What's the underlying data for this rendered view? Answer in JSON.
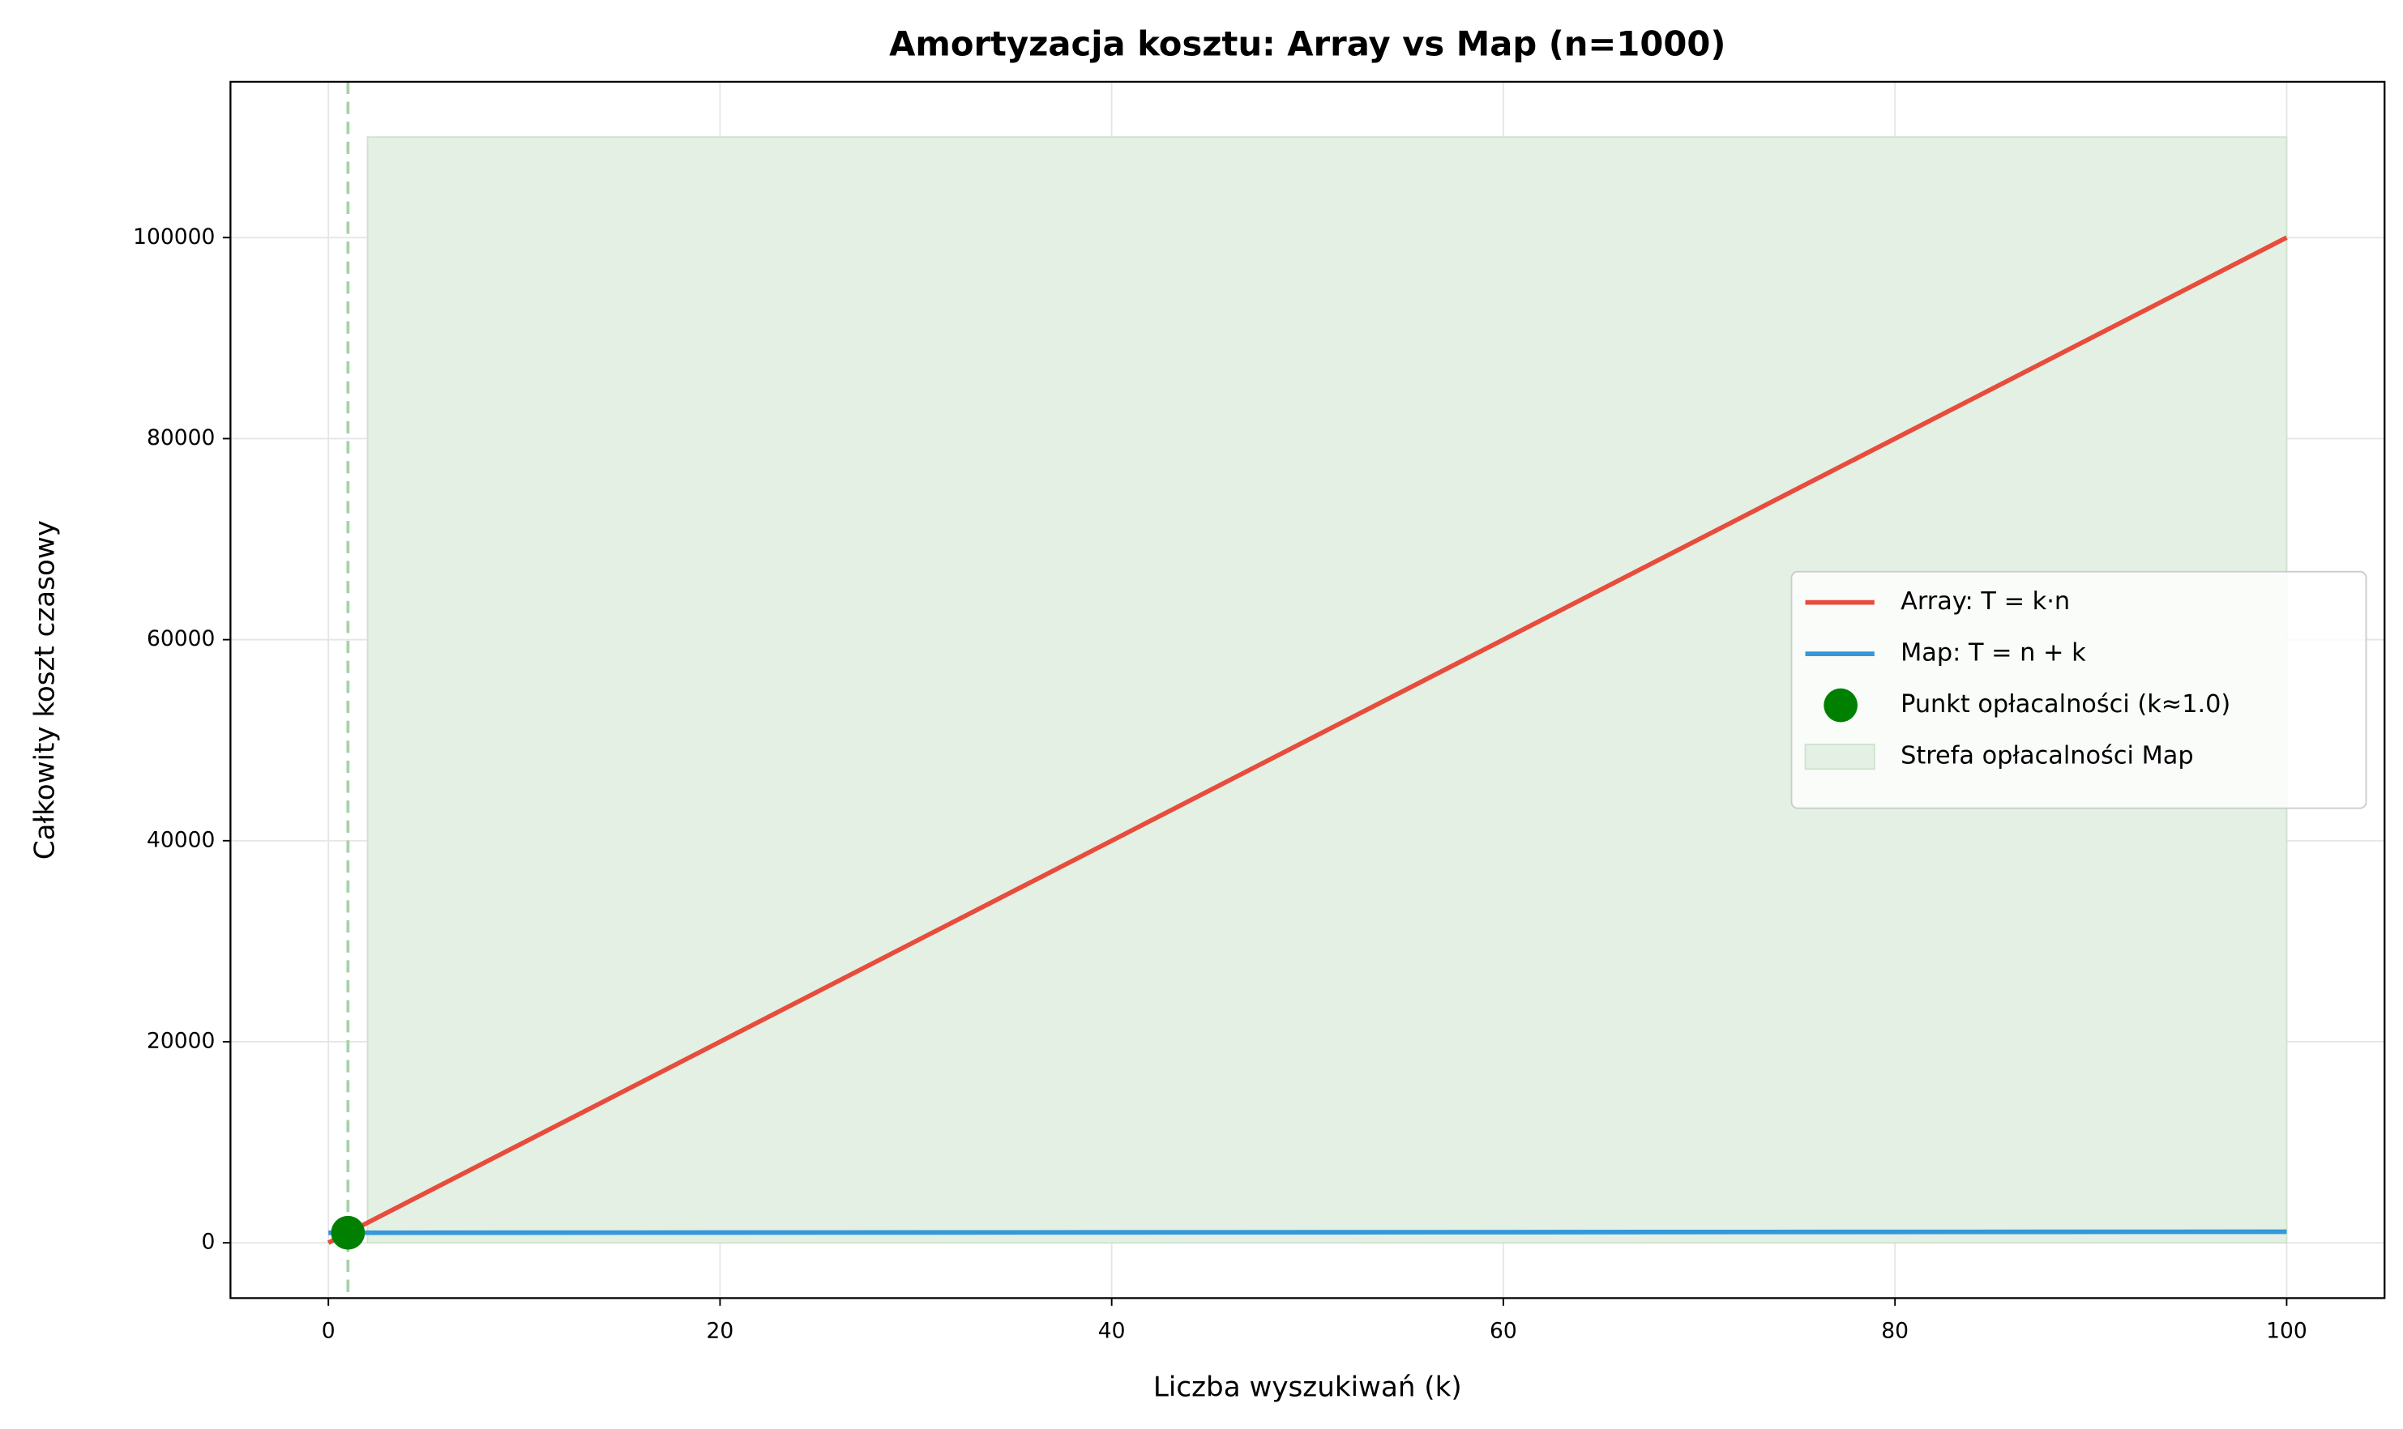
{
  "chart_data": {
    "type": "line",
    "title": "Amortyzacja kosztu: Array vs Map (n=1000)",
    "x_label": "Liczba wyszukiwań (k)",
    "y_label": "Całkowity koszt czasowy",
    "x": [
      0,
      100
    ],
    "series": [
      {
        "name": "Array: T = k·n",
        "color": "#e74c3c",
        "values": [
          0,
          100000
        ]
      },
      {
        "name": "Map: T = n + k",
        "color": "#3498db",
        "values": [
          1000,
          1100
        ]
      }
    ],
    "points": [
      {
        "name": "Punkt opłacalności (k≈1.0)",
        "color": "#008000",
        "x": 1.0,
        "y": 1000
      }
    ],
    "spans": [
      {
        "name": "Strefa opłacalności Map",
        "color": "#e4f0e4",
        "x": [
          2,
          100
        ],
        "y": [
          0,
          110000
        ]
      }
    ],
    "vlines": [
      {
        "x": 1.0,
        "color": "#a9d1a9"
      }
    ],
    "xlim": [
      -5,
      105
    ],
    "ylim": [
      -5500,
      115500
    ],
    "xticks": [
      0,
      20,
      40,
      60,
      80,
      100
    ],
    "yticks": [
      0,
      20000,
      40000,
      60000,
      80000,
      100000
    ],
    "grid": true,
    "legend": "center right"
  }
}
